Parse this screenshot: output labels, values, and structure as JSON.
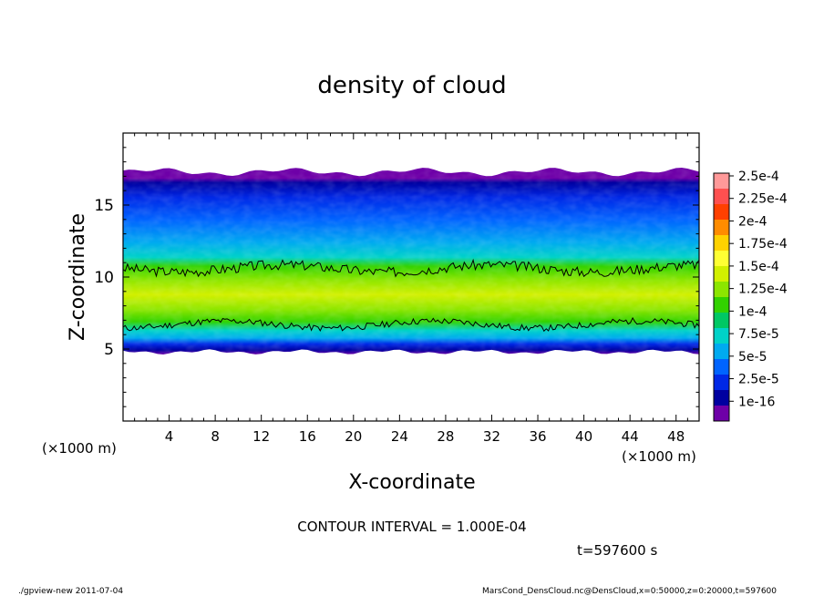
{
  "chart_data": {
    "type": "heatmap",
    "title": "density of cloud",
    "xlabel": "X-coordinate",
    "ylabel": "Z-coordinate",
    "x_unit": "(×1000 m)",
    "y_unit": "(×1000 m)",
    "xlim": [
      0,
      50
    ],
    "ylim": [
      0,
      20
    ],
    "x_ticks": [
      "4",
      "8",
      "12",
      "16",
      "20",
      "24",
      "28",
      "32",
      "36",
      "40",
      "44",
      "48"
    ],
    "x_tick_values": [
      4,
      8,
      12,
      16,
      20,
      24,
      28,
      32,
      36,
      40,
      44,
      48
    ],
    "y_ticks": [
      "5",
      "10",
      "15"
    ],
    "y_tick_values": [
      5,
      10,
      15
    ],
    "colorbar": {
      "labels": [
        "2.5e-4",
        "2.25e-4",
        "2e-4",
        "1.75e-4",
        "1.5e-4",
        "1.25e-4",
        "1e-4",
        "7.5e-5",
        "5e-5",
        "2.5e-5",
        "1e-16"
      ],
      "colors": [
        "#ff9999",
        "#ff5050",
        "#ff4000",
        "#ff8c00",
        "#ffd200",
        "#ffff33",
        "#d2f000",
        "#8ce600",
        "#32d200",
        "#00c864",
        "#00d2c8",
        "#00aaf0",
        "#0064ff",
        "#0028e6",
        "#0000a0",
        "#6e00a8"
      ]
    },
    "cloud_layer": {
      "bottom_z": 4.8,
      "top_z": 17.3,
      "max_density_z": 8.8,
      "max_density": 0.00015,
      "contour_levels": [
        0.0001
      ]
    },
    "annotation_contour": "CONTOUR INTERVAL = 1.000E-04",
    "annotation_time": "t=597600 s"
  },
  "footer": {
    "left": "./gpview-new   2011-07-04",
    "right": "MarsCond_DensCloud.nc@DensCloud,x=0:50000,z=0:20000,t=597600"
  }
}
